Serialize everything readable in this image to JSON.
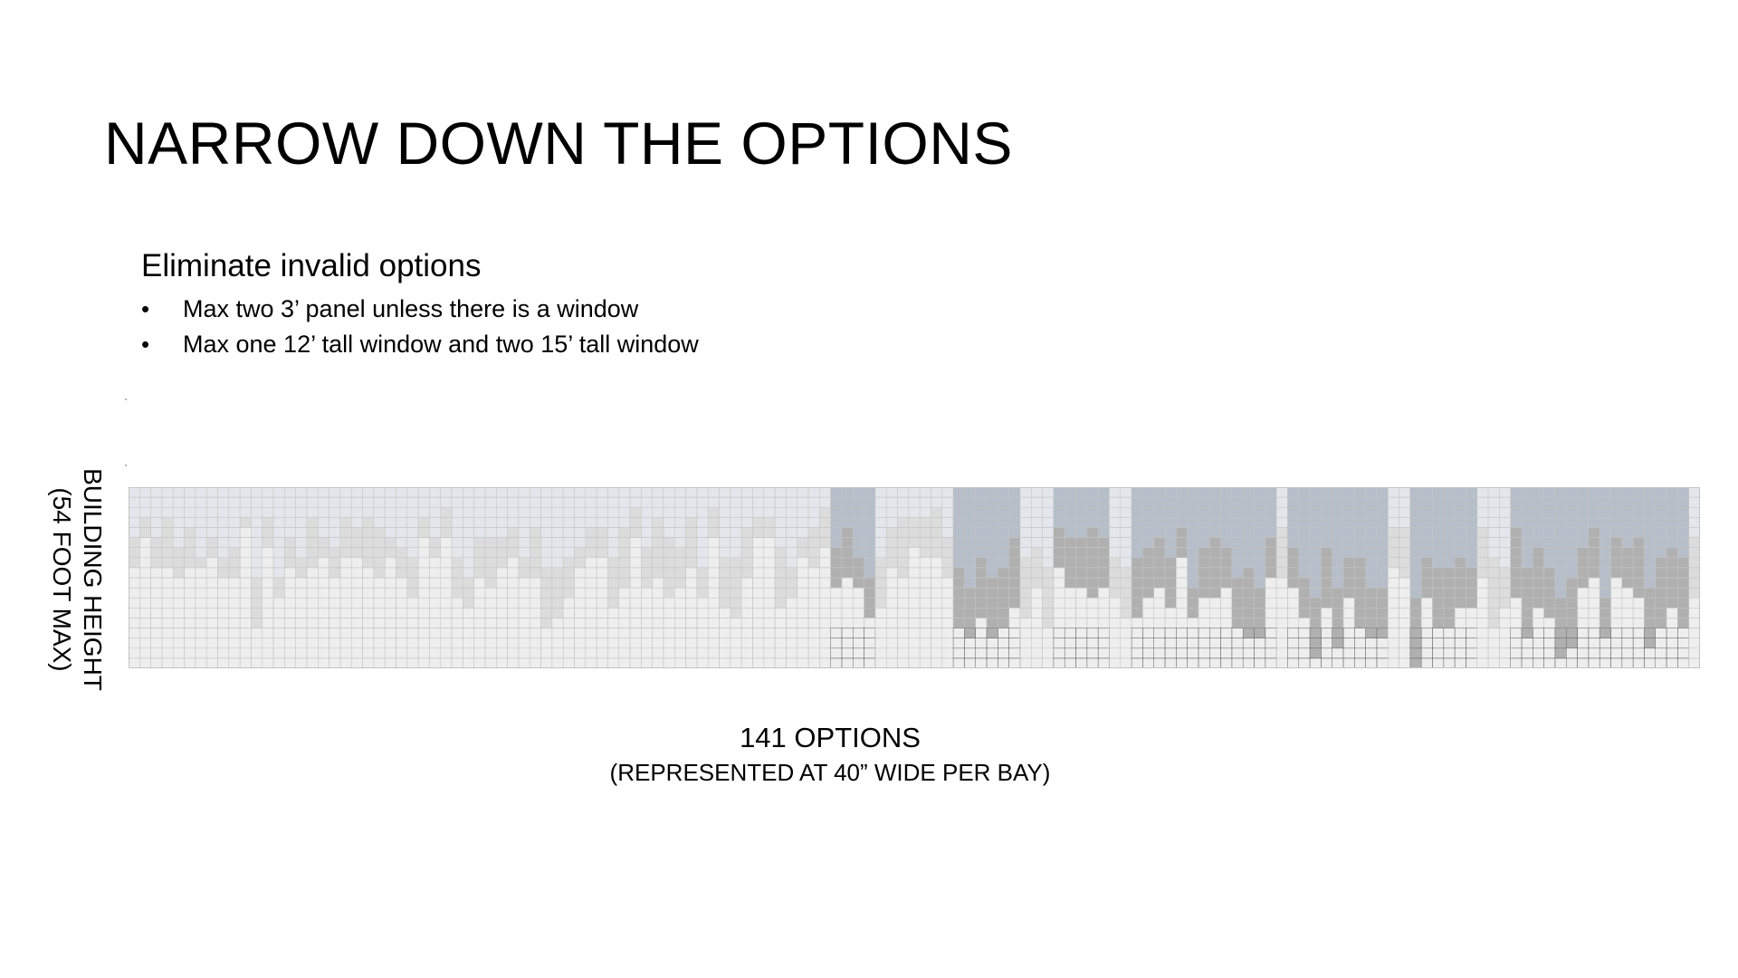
{
  "title": "NARROW DOWN THE OPTIONS",
  "subheading": "Eliminate invalid options",
  "bullets": [
    {
      "marker": "•",
      "text": "Max two 3’ panel unless there is a window"
    },
    {
      "marker": "•",
      "text": "Max one 12’ tall window and two 15’ tall window"
    }
  ],
  "y_axis": {
    "line1": "BUILDING HEIGHT",
    "line2": "(54 FOOT MAX)"
  },
  "x_axis": {
    "main": "141 OPTIONS",
    "sub": "(REPRESENTED AT 40” WIDE PER BAY)"
  },
  "diagram": {
    "option_count": 141,
    "rows_per_column": 18,
    "colors": {
      "background": "#eeeeee",
      "wall_panel": "#dcdcdc",
      "window_light": "#e3e6ea",
      "window_tinted": "#b6bec9",
      "panel_dark": "#8f8f8f",
      "panel_mid": "#b0b0b0",
      "grid_line": "#c4c4c4",
      "grid_line_dark": "#6e6e6e"
    }
  }
}
